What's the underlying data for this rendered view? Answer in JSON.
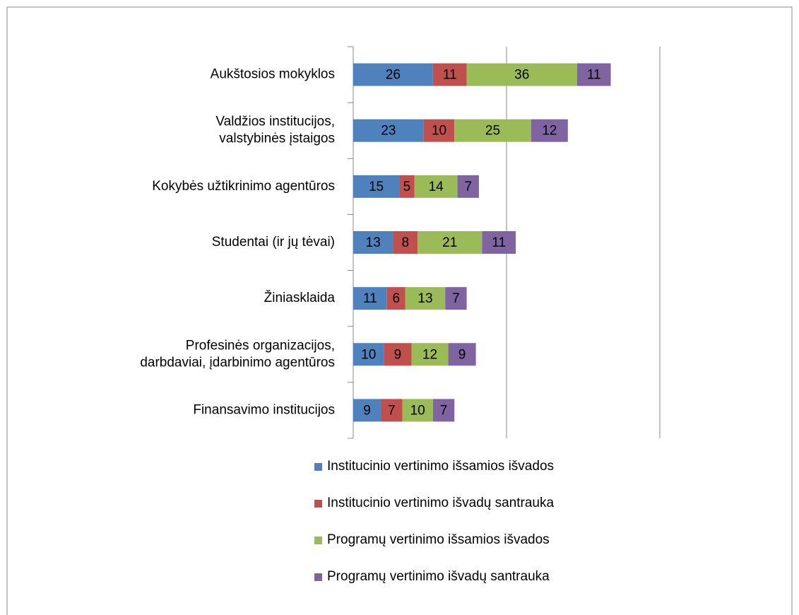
{
  "chart_data": {
    "type": "stacked-barh",
    "categories": [
      "Aukštosios mokyklos",
      "Valdžios institucijos,\nvalstybinės įstaigos",
      "Kokybės užtikrinimo agentūros",
      "Studentai (ir jų tėvai)",
      "Žiniasklaida",
      "Profesinės organizacijos,\ndarbdaviai, įdarbinimo agentūros",
      "Finansavimo institucijos"
    ],
    "series": [
      {
        "name": "Institucinio vertinimo išsamios išvados",
        "color": "#4f81bd",
        "values": [
          26,
          23,
          15,
          13,
          11,
          10,
          9
        ]
      },
      {
        "name": "Institucinio vertinimo išvadų santrauka",
        "color": "#c0504d",
        "values": [
          11,
          10,
          5,
          8,
          6,
          9,
          7
        ]
      },
      {
        "name": "Programų vertinimo išsamios išvados",
        "color": "#9bbb59",
        "values": [
          36,
          25,
          14,
          21,
          13,
          12,
          10
        ]
      },
      {
        "name": "Programų vertinimo išvadų santrauka",
        "color": "#8064a2",
        "values": [
          11,
          12,
          7,
          11,
          7,
          9,
          7
        ]
      }
    ],
    "xlim": [
      0,
      100
    ],
    "xticks": [
      0,
      50,
      100
    ],
    "grid": true,
    "legend": "bottom"
  }
}
